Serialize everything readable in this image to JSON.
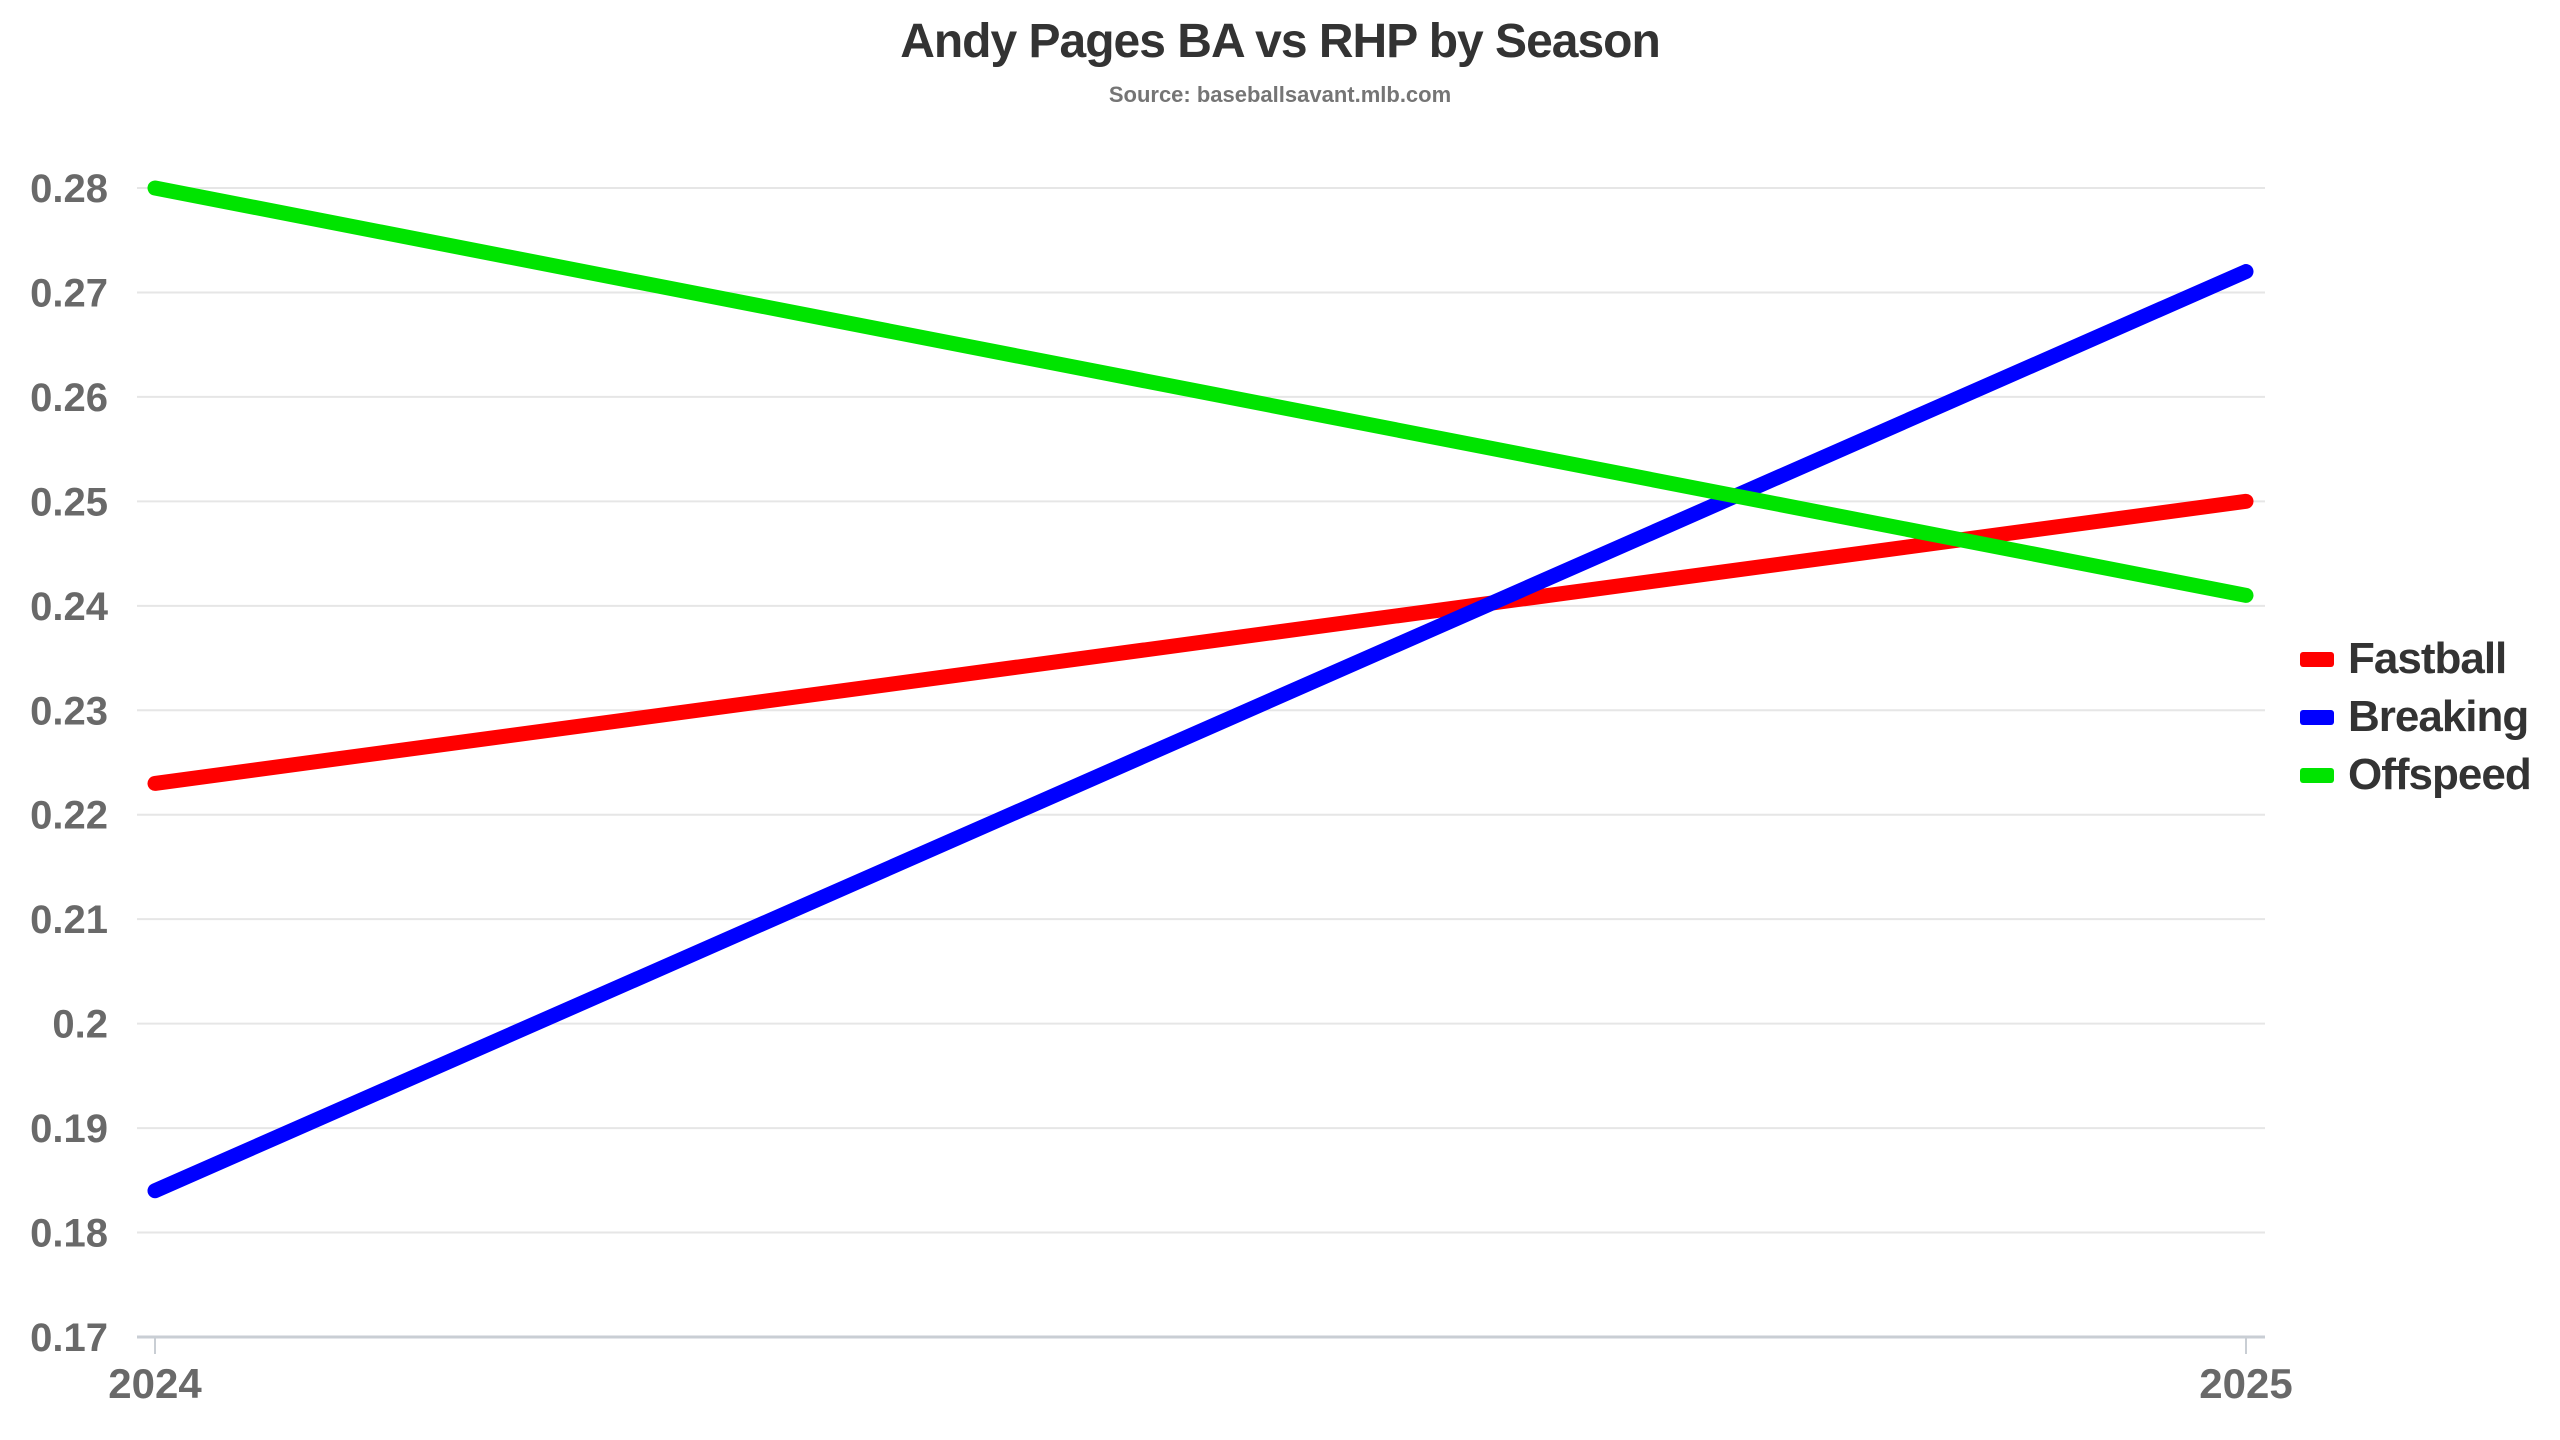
{
  "header": {
    "title": "Andy Pages BA vs RHP by Season",
    "subtitle": "Source: baseballsavant.mlb.com"
  },
  "chart_data": {
    "type": "line",
    "title": "Andy Pages BA vs RHP by Season",
    "subtitle": "Source: baseballsavant.mlb.com",
    "xlabel": "",
    "ylabel": "",
    "x_categories": [
      "2024",
      "2025"
    ],
    "y_tick_labels": [
      "0.28",
      "0.27",
      "0.26",
      "0.25",
      "0.24",
      "0.23",
      "0.22",
      "0.21",
      "0.2",
      "0.19",
      "0.18",
      "0.17"
    ],
    "ylim": [
      0.17,
      0.28
    ],
    "grid": true,
    "legend_position": "right",
    "series": [
      {
        "name": "Fastball",
        "color": "#ff0000",
        "values": [
          0.223,
          0.25
        ]
      },
      {
        "name": "Breaking",
        "color": "#0000ff",
        "values": [
          0.184,
          0.272
        ]
      },
      {
        "name": "Offspeed",
        "color": "#00e400",
        "values": [
          0.28,
          0.241
        ]
      }
    ]
  },
  "colors": {
    "background": "#ffffff",
    "title_text": "#333333",
    "subtitle_text": "#757575",
    "tick_label": "#696969",
    "grid_line": "#e6e6e6",
    "axis_line": "#c9ced4",
    "legend_text": "#333333",
    "fastball": "#ff0000",
    "breaking": "#0000ff",
    "offspeed": "#00e400"
  }
}
